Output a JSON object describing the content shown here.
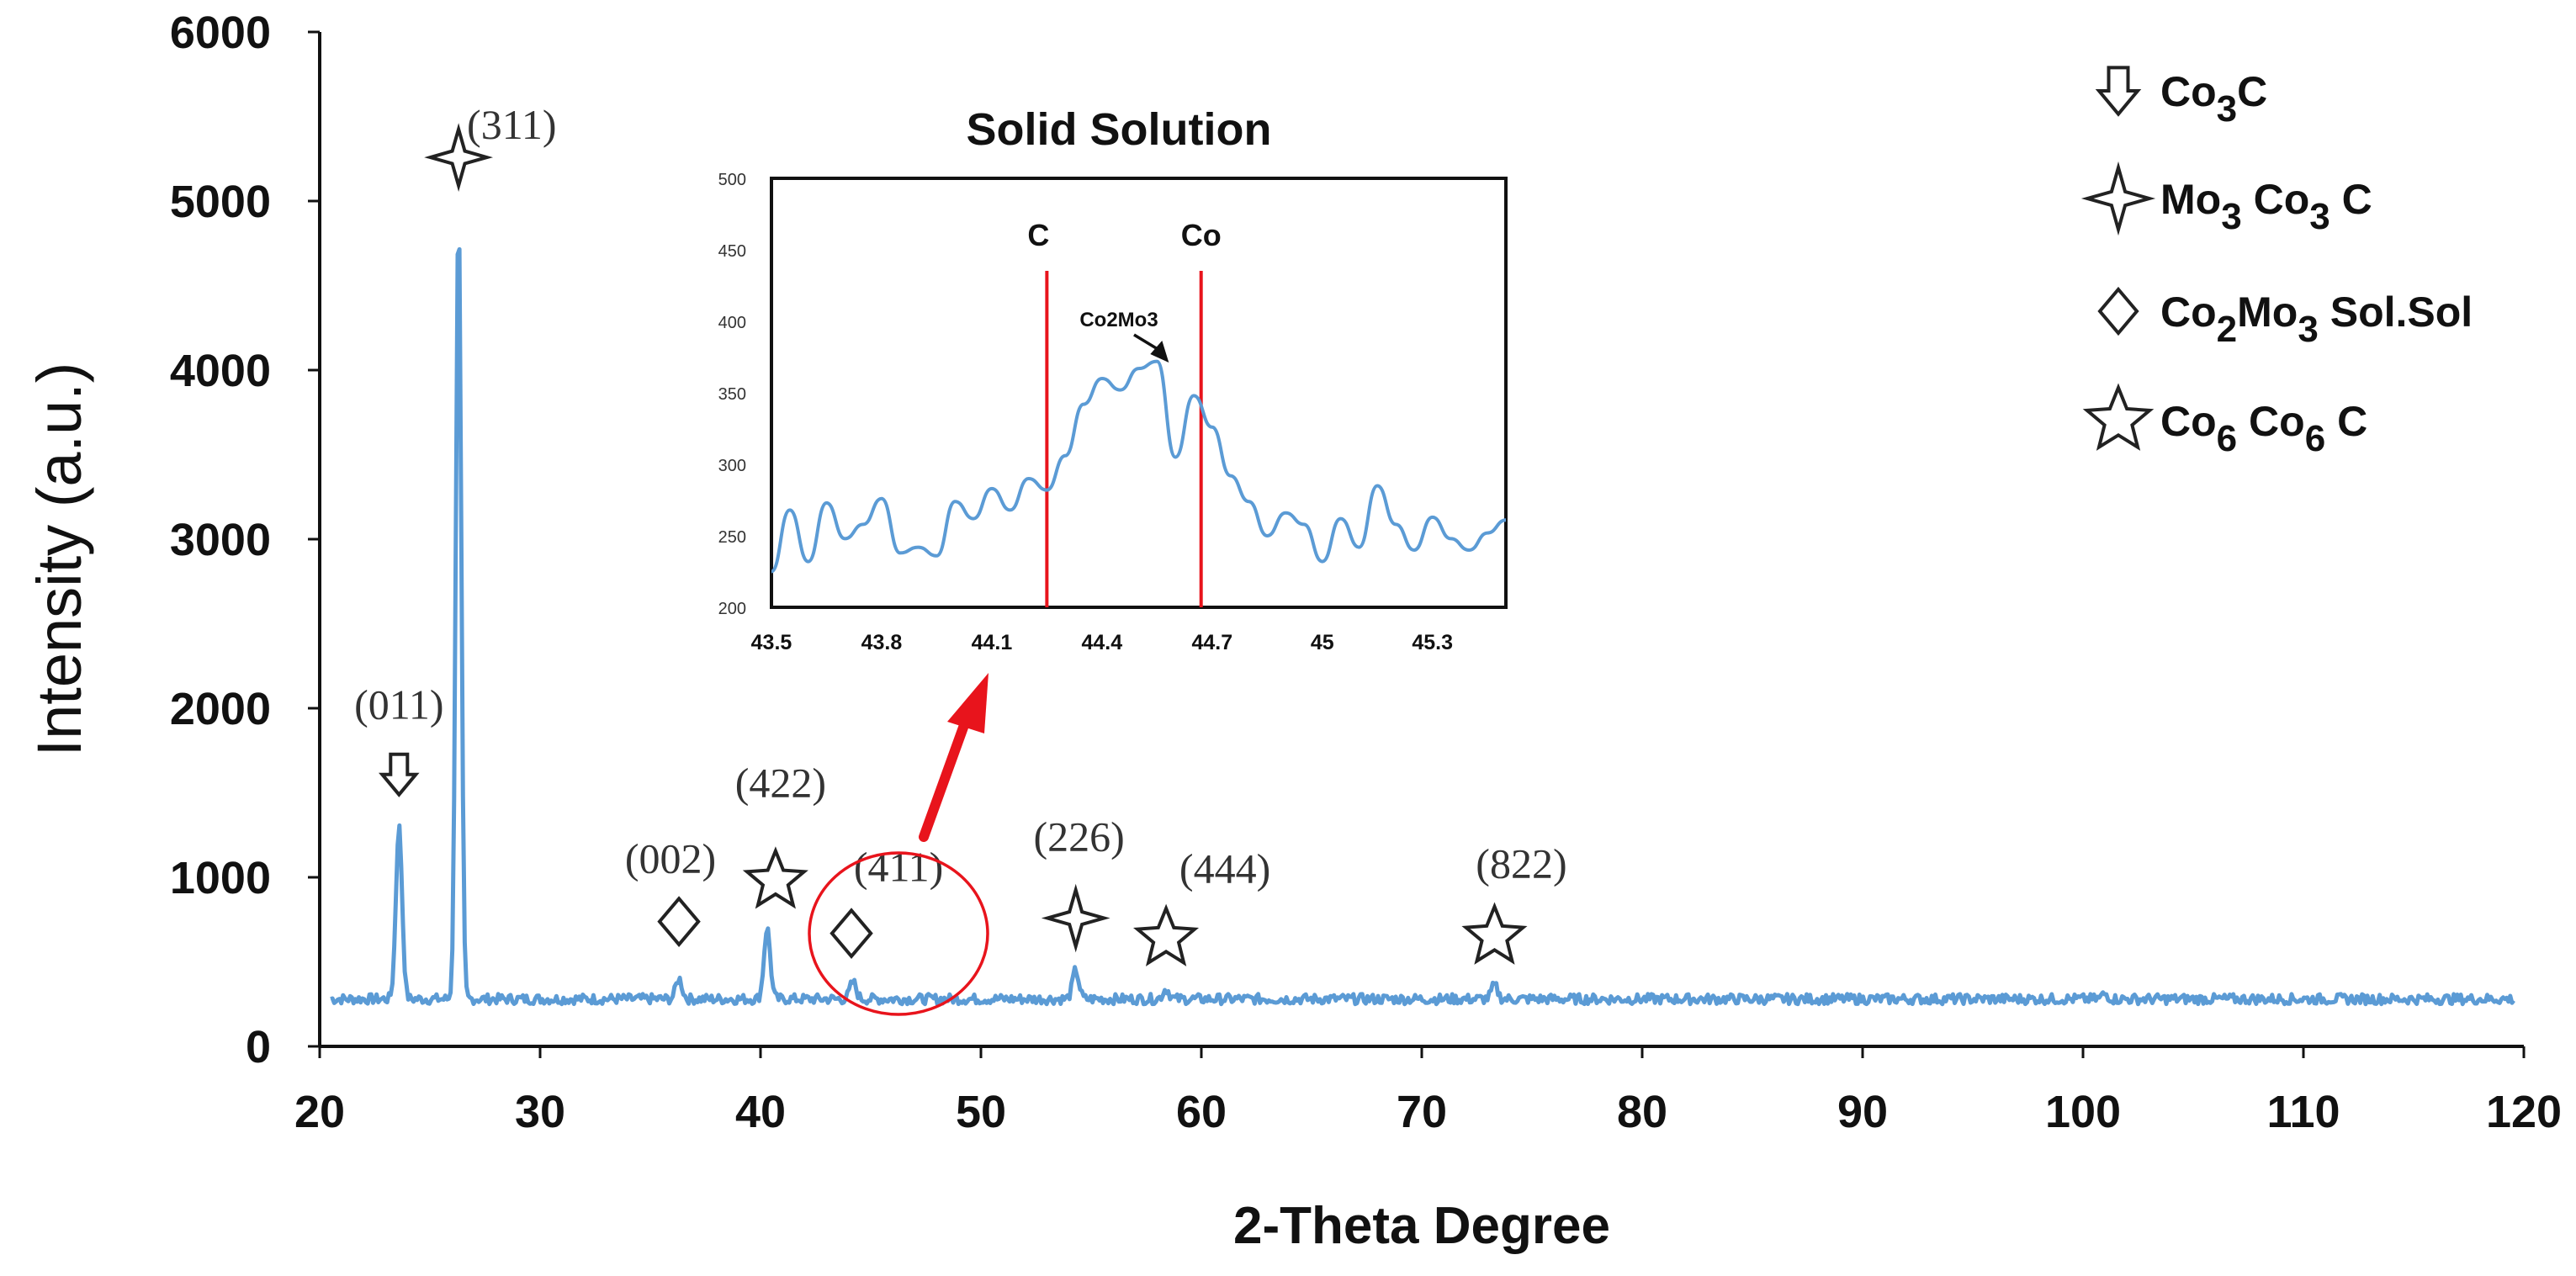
{
  "chart_data": {
    "type": "line",
    "main": {
      "xlabel": "2-Theta Degree",
      "ylabel": "Intensity (a.u.)",
      "xlim": [
        20,
        120
      ],
      "ylim": [
        0,
        6000
      ],
      "xticks": [
        "20",
        "30",
        "40",
        "50",
        "60",
        "70",
        "80",
        "90",
        "100",
        "110",
        "120"
      ],
      "yticks": [
        "0",
        "1000",
        "2000",
        "3000",
        "4000",
        "5000",
        "6000"
      ],
      "baseline": 280,
      "peaks": [
        {
          "x": 23.6,
          "y": 1300
        },
        {
          "x": 26.3,
          "y": 4950
        },
        {
          "x": 36.3,
          "y": 400
        },
        {
          "x": 40.3,
          "y": 700
        },
        {
          "x": 44.2,
          "y": 380
        },
        {
          "x": 54.3,
          "y": 450
        },
        {
          "x": 58.4,
          "y": 340
        },
        {
          "x": 73.3,
          "y": 360
        },
        {
          "x": 101.0,
          "y": 310
        }
      ],
      "annotations": [
        {
          "label": "(011)",
          "x": 23.6,
          "y": 1300,
          "marker": "arrow"
        },
        {
          "label": "(311)",
          "x": 26.3,
          "y": 4950,
          "marker": "star4"
        },
        {
          "label": "(002)",
          "x": 36.3,
          "y": 400,
          "marker": "diamond"
        },
        {
          "label": "(422)",
          "x": 40.3,
          "y": 700,
          "marker": "star5"
        },
        {
          "label": "(411)",
          "x": 44.2,
          "y": 380,
          "marker": "diamond"
        },
        {
          "label": "(226)",
          "x": 54.3,
          "y": 450,
          "marker": "star4"
        },
        {
          "label": "(444)",
          "x": 58.4,
          "y": 340,
          "marker": "star5"
        },
        {
          "label": "(822)",
          "x": 73.3,
          "y": 360,
          "marker": "star5"
        }
      ]
    },
    "inset": {
      "title": "Solid Solution",
      "xlim": [
        43.5,
        45.5
      ],
      "ylim": [
        200,
        500
      ],
      "xticks": [
        "43.5",
        "43.8",
        "44.1",
        "44.4",
        "44.7",
        "45",
        "45.3"
      ],
      "yticks": [
        "200",
        "250",
        "300",
        "350",
        "400",
        "450",
        "500"
      ],
      "reference_lines": [
        {
          "label": "C",
          "x": 44.25
        },
        {
          "label": "Co",
          "x": 44.67
        }
      ],
      "peak_label": "Co2Mo3",
      "peak_x": 44.55,
      "peak_y": 370,
      "x": [
        43.5,
        43.55,
        43.6,
        43.65,
        43.7,
        43.75,
        43.8,
        43.85,
        43.9,
        43.95,
        44.0,
        44.05,
        44.1,
        44.15,
        44.2,
        44.25,
        44.3,
        44.35,
        44.4,
        44.45,
        44.5,
        44.55,
        44.6,
        44.65,
        44.7,
        44.75,
        44.8,
        44.85,
        44.9,
        44.95,
        45.0,
        45.05,
        45.1,
        45.15,
        45.2,
        45.25,
        45.3,
        45.35,
        45.4,
        45.45,
        45.5
      ],
      "y": [
        225,
        268,
        232,
        273,
        248,
        258,
        276,
        238,
        242,
        236,
        274,
        262,
        283,
        268,
        290,
        282,
        306,
        342,
        360,
        352,
        367,
        372,
        305,
        348,
        326,
        292,
        274,
        250,
        266,
        258,
        232,
        262,
        242,
        285,
        258,
        240,
        263,
        248,
        240,
        252,
        261
      ]
    },
    "legend": {
      "placement": "top-right",
      "entries": [
        {
          "marker": "arrow",
          "parts": [
            [
              "Co",
              false
            ],
            [
              "3",
              true
            ],
            [
              "C",
              false
            ]
          ]
        },
        {
          "marker": "star4",
          "parts": [
            [
              "Mo",
              false
            ],
            [
              "3",
              true
            ],
            [
              " Co",
              false
            ],
            [
              "3",
              true
            ],
            [
              " C",
              false
            ]
          ]
        },
        {
          "marker": "diamond",
          "parts": [
            [
              "Co",
              false
            ],
            [
              "2",
              true
            ],
            [
              "Mo",
              false
            ],
            [
              "3",
              true
            ],
            [
              " Sol.Sol",
              false
            ]
          ]
        },
        {
          "marker": "star5",
          "parts": [
            [
              "Co",
              false
            ],
            [
              "6",
              true
            ],
            [
              " Co",
              false
            ],
            [
              "6",
              true
            ],
            [
              " C",
              false
            ]
          ]
        }
      ]
    },
    "colors": {
      "line": "#5b9bd5",
      "highlight": "#e8141c",
      "text": "#111111"
    }
  }
}
